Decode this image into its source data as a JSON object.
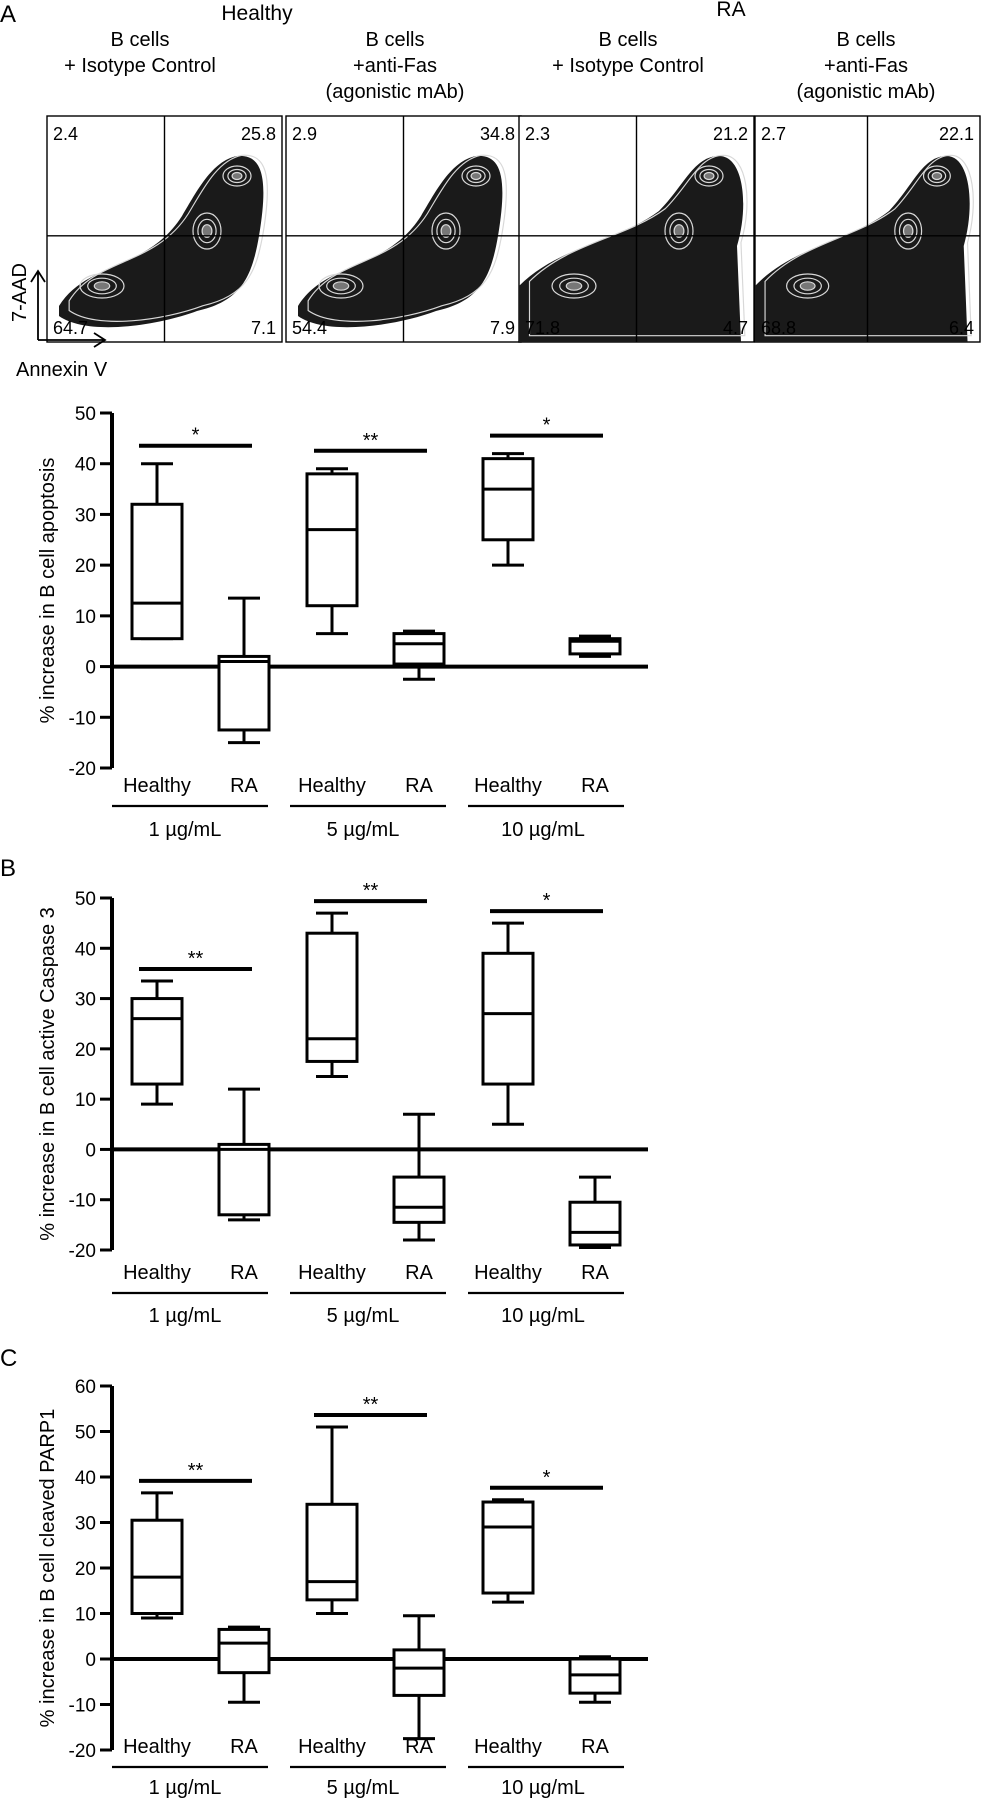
{
  "panel_a": {
    "letter": "A",
    "group_healthy": "Healthy",
    "group_ra": "RA",
    "plot_headers": [
      [
        "B cells",
        "+ Isotype Control"
      ],
      [
        "B cells",
        "+anti-Fas",
        "(agonistic mAb)"
      ],
      [
        "B cells",
        "+ Isotype Control"
      ],
      [
        "B cells",
        "+anti-Fas",
        "(agonistic mAb)"
      ]
    ],
    "y_axis_label": "7-AAD",
    "x_axis_label": "Annexin V",
    "flow_plots": [
      {
        "ul": "2.4",
        "ur": "25.8",
        "ll": "64.7",
        "lr": "7.1"
      },
      {
        "ul": "2.9",
        "ur": "34.8",
        "ll": "54.4",
        "lr": "7.9"
      },
      {
        "ul": "2.3",
        "ur": "21.2",
        "ll": "71.8",
        "lr": "4.7"
      },
      {
        "ul": "2.7",
        "ur": "22.1",
        "ll": "68.8",
        "lr": "6.4"
      }
    ]
  },
  "colors": {
    "ink": "#000000",
    "density_dark": "#1a1a1a",
    "density_mid": "#777777",
    "density_light": "#d8d8d8"
  },
  "chart_data": [
    {
      "type": "box",
      "panel": "A",
      "ylabel": "% increase in B cell apoptosis",
      "yticks": [
        50,
        40,
        30,
        20,
        10,
        0,
        -10,
        -20
      ],
      "ylim": [
        -20,
        50
      ],
      "categories": [
        "Healthy",
        "RA",
        "Healthy",
        "RA",
        "Healthy",
        "RA"
      ],
      "groups": [
        "1  µg/mL",
        "5  µg/mL",
        "10  µg/mL"
      ],
      "boxes": [
        {
          "min": 5.5,
          "q1": 5.5,
          "median": 12.5,
          "q3": 32,
          "max": 40
        },
        {
          "min": -15,
          "q1": -12.5,
          "median": 1,
          "q3": 2,
          "max": 13.5
        },
        {
          "min": 6.5,
          "q1": 12,
          "median": 27,
          "q3": 38,
          "max": 39
        },
        {
          "min": -2.5,
          "q1": 0.5,
          "median": 4.5,
          "q3": 6.5,
          "max": 7
        },
        {
          "min": 20,
          "q1": 25,
          "median": 35,
          "q3": 41,
          "max": 42
        },
        {
          "min": 2,
          "q1": 2.5,
          "median": 5,
          "q3": 5.5,
          "max": 6
        }
      ],
      "significance": [
        "*",
        "**",
        "*"
      ]
    },
    {
      "type": "box",
      "panel": "B",
      "ylabel": "% increase in B cell active Caspase 3",
      "yticks": [
        50,
        40,
        30,
        20,
        10,
        0,
        -10,
        -20
      ],
      "ylim": [
        -20,
        50
      ],
      "categories": [
        "Healthy",
        "RA",
        "Healthy",
        "RA",
        "Healthy",
        "RA"
      ],
      "groups": [
        "1  µg/mL",
        "5  µg/mL",
        "10  µg/mL"
      ],
      "boxes": [
        {
          "min": 9,
          "q1": 13,
          "median": 26,
          "q3": 30,
          "max": 33.5
        },
        {
          "min": -14,
          "q1": -13,
          "median": 0,
          "q3": 1,
          "max": 12
        },
        {
          "min": 14.5,
          "q1": 17.5,
          "median": 22,
          "q3": 43,
          "max": 47
        },
        {
          "min": -18,
          "q1": -14.5,
          "median": -11.5,
          "q3": -5.5,
          "max": 7
        },
        {
          "min": 5,
          "q1": 13,
          "median": 27,
          "q3": 39,
          "max": 45
        },
        {
          "min": -19.5,
          "q1": -19,
          "median": -16.5,
          "q3": -10.5,
          "max": -5.5
        }
      ],
      "significance": [
        "**",
        "**",
        "*"
      ]
    },
    {
      "type": "box",
      "panel": "C",
      "ylabel": "% increase in B cell cleaved PARP1",
      "yticks": [
        60,
        50,
        40,
        30,
        20,
        10,
        0,
        -10,
        -20
      ],
      "ylim": [
        -20,
        60
      ],
      "categories": [
        "Healthy",
        "RA",
        "Healthy",
        "RA",
        "Healthy",
        "RA"
      ],
      "groups": [
        "1  µg/mL",
        "5  µg/mL",
        "10  µg/mL"
      ],
      "boxes": [
        {
          "min": 9,
          "q1": 10,
          "median": 18,
          "q3": 30.5,
          "max": 36.5
        },
        {
          "min": -9.5,
          "q1": -3,
          "median": 3.5,
          "q3": 6.5,
          "max": 7
        },
        {
          "min": 10,
          "q1": 13,
          "median": 17,
          "q3": 34,
          "max": 51
        },
        {
          "min": -17.5,
          "q1": -8,
          "median": -2,
          "q3": 2,
          "max": 9.5
        },
        {
          "min": 12.5,
          "q1": 14.5,
          "median": 29,
          "q3": 34.5,
          "max": 35
        },
        {
          "min": -9.5,
          "q1": -7.5,
          "median": -3.5,
          "q3": 0,
          "max": 0.5
        }
      ],
      "significance": [
        "**",
        "**",
        "*"
      ]
    }
  ]
}
